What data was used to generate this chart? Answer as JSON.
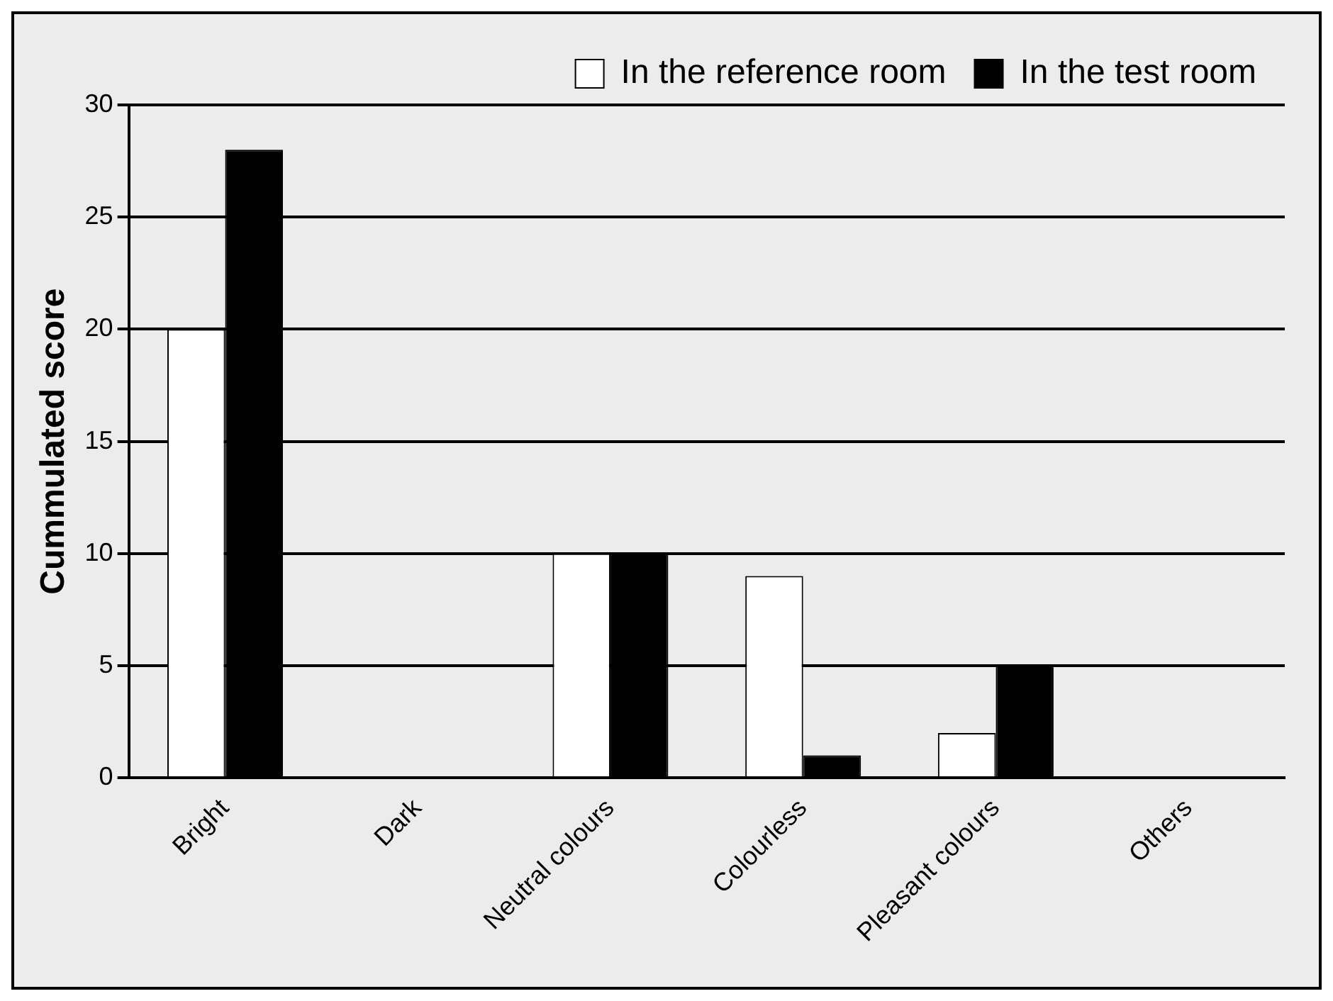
{
  "chart_data": {
    "type": "bar",
    "ylabel": "Cummulated score",
    "categories": [
      "Bright",
      "Dark",
      "Neutral colours",
      "Colourless",
      "Pleasant colours",
      "Others"
    ],
    "series": [
      {
        "name": "In the reference room",
        "color": "#ffffff",
        "values": [
          20,
          0,
          10,
          9,
          2,
          0
        ]
      },
      {
        "name": "In the test room",
        "color": "#000000",
        "values": [
          28,
          0,
          10,
          1,
          5,
          0
        ]
      }
    ],
    "ylim": [
      0,
      30
    ],
    "yticks": [
      0,
      5,
      10,
      15,
      20,
      25,
      30
    ],
    "grid": "y",
    "legend": "top right"
  }
}
